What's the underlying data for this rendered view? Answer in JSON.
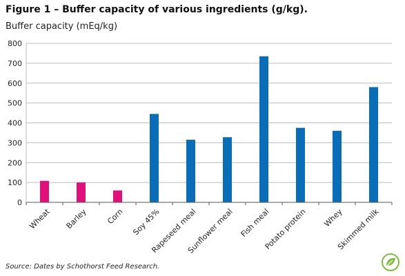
{
  "figure": {
    "title": "Figure 1 – Buffer capacity of various ingredients (g/kg).",
    "source": "Source: Dates by Schothorst Feed Research."
  },
  "chart_data": {
    "type": "bar",
    "title": "Figure 1 – Buffer capacity of various ingredients (g/kg).",
    "xlabel": "",
    "ylabel": "Buffer capacity (mEq/kg)",
    "ylim": [
      0,
      800
    ],
    "yticks": [
      0,
      100,
      200,
      300,
      400,
      500,
      600,
      700,
      800
    ],
    "grid": true,
    "legend": "none",
    "categories": [
      "Wheat",
      "Barley",
      "Corn",
      "Soy 45%",
      "Rapeseed meal",
      "Sunflower meal",
      "Fish meal",
      "Potato protein",
      "Whey",
      "Skimmed milk"
    ],
    "values": [
      108,
      100,
      60,
      445,
      315,
      328,
      735,
      375,
      360,
      580
    ],
    "colors": [
      "#e0117a",
      "#e0117a",
      "#e0117a",
      "#0a6db8",
      "#0a6db8",
      "#0a6db8",
      "#0a6db8",
      "#0a6db8",
      "#0a6db8",
      "#0a6db8"
    ]
  },
  "colors": {
    "grain": "#e0117a",
    "protein": "#0a6db8",
    "grid": "#bbbbbb",
    "axis": "#555555",
    "logo": "#7dbb3c"
  },
  "logo": {
    "icon": "leaf-badge-icon"
  }
}
